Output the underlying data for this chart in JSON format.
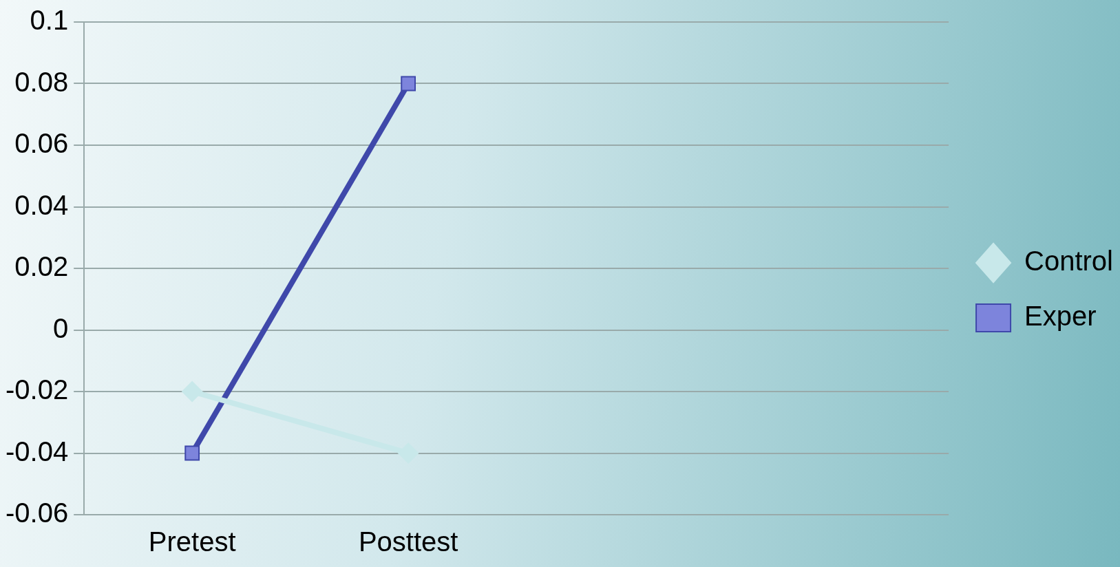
{
  "chart_data": {
    "type": "line",
    "categories": [
      "Pretest",
      "Posttest",
      null,
      null
    ],
    "series": [
      {
        "name": "Control",
        "color": "#c8e8ea",
        "values": [
          -0.02,
          -0.04,
          null,
          null
        ],
        "marker": "diamond"
      },
      {
        "name": "Exper",
        "color": "#3f48aa",
        "values": [
          -0.04,
          0.08,
          null,
          null
        ],
        "marker": "square"
      }
    ],
    "ylim": [
      -0.06,
      0.1
    ],
    "yticks": [
      -0.06,
      -0.04,
      -0.02,
      0,
      0.02,
      0.04,
      0.06,
      0.08,
      0.1
    ],
    "grid": "y",
    "legend": "right"
  }
}
